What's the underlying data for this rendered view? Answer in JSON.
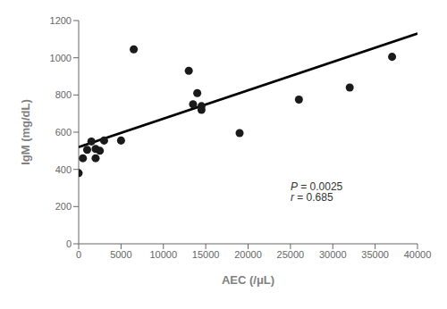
{
  "chart_data": {
    "type": "scatter",
    "x": [
      0,
      500,
      1000,
      1500,
      2000,
      2000,
      2500,
      3000,
      5000,
      6500,
      13000,
      13500,
      14000,
      14500,
      14500,
      19000,
      26000,
      32000,
      37000
    ],
    "values": [
      380,
      460,
      505,
      550,
      460,
      510,
      500,
      555,
      555,
      1045,
      930,
      750,
      810,
      740,
      720,
      595,
      775,
      840,
      1005
    ],
    "color": "#1a1a1a",
    "line": {
      "x": [
        0,
        40000
      ],
      "values": [
        520,
        1130
      ],
      "color": "#000000"
    },
    "xlabel": "AEC (/μL)",
    "ylabel": "IgM (mg/dL)",
    "xlim": [
      0,
      40000
    ],
    "ylim": [
      0,
      1200
    ],
    "xticks": [
      0,
      5000,
      10000,
      15000,
      20000,
      25000,
      30000,
      35000,
      40000
    ],
    "yticks": [
      0,
      200,
      400,
      600,
      800,
      1000,
      1200
    ],
    "grid": false,
    "annotations": [
      {
        "text": "P = 0.0025",
        "x": 25000,
        "y": 305
      },
      {
        "text": "r = 0.685",
        "x": 25000,
        "y": 250
      }
    ]
  }
}
